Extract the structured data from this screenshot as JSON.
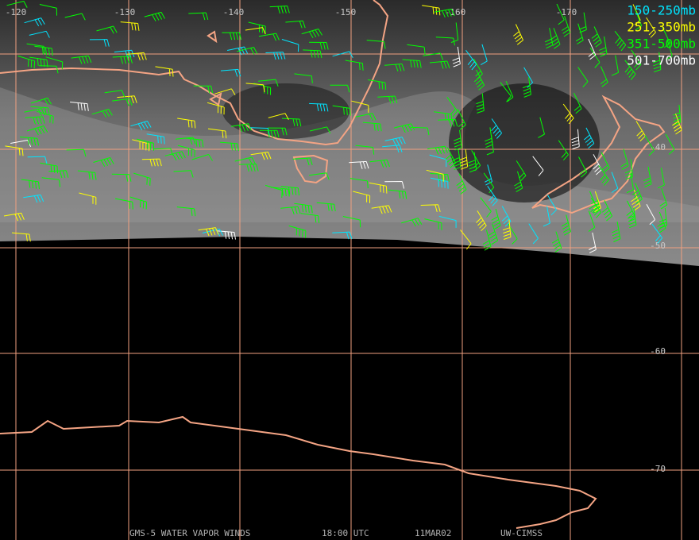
{
  "map": {
    "lon_labels": [
      "-120",
      "-130",
      "-140",
      "-150",
      "-160",
      "-170"
    ],
    "lat_labels": [
      "-40",
      "-50",
      "-60",
      "-70"
    ],
    "legend": [
      {
        "label": "150-250mb",
        "color": "#00e5ff"
      },
      {
        "label": "251-350mb",
        "color": "#ffff00"
      },
      {
        "label": "351-500mb",
        "color": "#00ff00"
      },
      {
        "label": "501-700mb",
        "color": "#ffffff"
      }
    ],
    "footer": [
      "GMS-5 WATER VAPOR WINDS",
      "18:00 UTC",
      "11MAR02",
      "UW-CIMSS"
    ]
  }
}
